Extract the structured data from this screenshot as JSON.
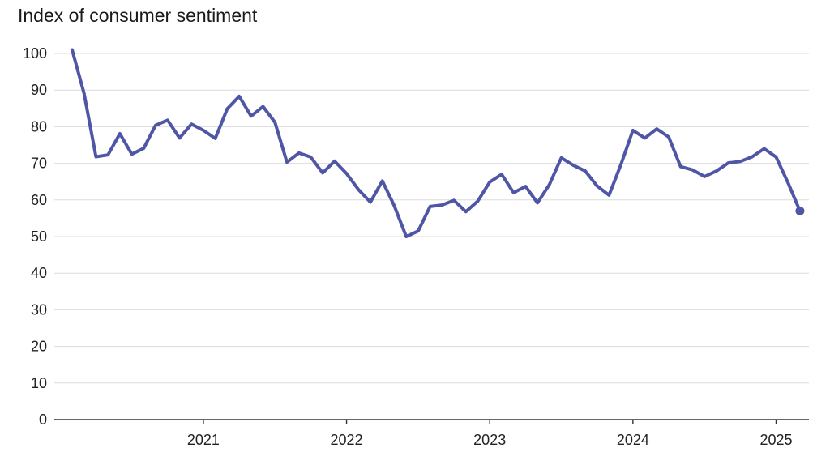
{
  "chart_data": {
    "type": "line",
    "title": "Index of consumer sentiment",
    "xlabel": "",
    "ylabel": "",
    "ylim": [
      0,
      100
    ],
    "yticks": [
      0,
      10,
      20,
      30,
      40,
      50,
      60,
      70,
      80,
      90,
      100
    ],
    "xticks": [
      "2021",
      "2022",
      "2023",
      "2024",
      "2025"
    ],
    "grid": true,
    "line_color": "#4f56a6",
    "series": [
      {
        "x": [
          "2020-02",
          "2020-03",
          "2020-04",
          "2020-05",
          "2020-06",
          "2020-07",
          "2020-08",
          "2020-09",
          "2020-10",
          "2020-11",
          "2020-12",
          "2021-01",
          "2021-02",
          "2021-03",
          "2021-04",
          "2021-05",
          "2021-06",
          "2021-07",
          "2021-08",
          "2021-09",
          "2021-10",
          "2021-11",
          "2021-12",
          "2022-01",
          "2022-02",
          "2022-03",
          "2022-04",
          "2022-05",
          "2022-06",
          "2022-07",
          "2022-08",
          "2022-09",
          "2022-10",
          "2022-11",
          "2022-12",
          "2023-01",
          "2023-02",
          "2023-03",
          "2023-04",
          "2023-05",
          "2023-06",
          "2023-07",
          "2023-08",
          "2023-09",
          "2023-10",
          "2023-11",
          "2023-12",
          "2024-01",
          "2024-02",
          "2024-03",
          "2024-04",
          "2024-05",
          "2024-06",
          "2024-07",
          "2024-08",
          "2024-09",
          "2024-10",
          "2024-11",
          "2024-12",
          "2025-01",
          "2025-02",
          "2025-03"
        ],
        "values": [
          101,
          89.1,
          71.8,
          72.3,
          78.1,
          72.5,
          74.1,
          80.4,
          81.8,
          76.9,
          80.7,
          79,
          76.8,
          84.9,
          88.3,
          82.9,
          85.5,
          81.2,
          70.3,
          72.8,
          71.7,
          67.4,
          70.6,
          67.2,
          62.8,
          59.4,
          65.2,
          58.4,
          50,
          51.5,
          58.2,
          58.6,
          59.9,
          56.8,
          59.7,
          64.9,
          67,
          62,
          63.7,
          59.2,
          64.2,
          71.5,
          69.5,
          67.9,
          63.8,
          61.3,
          69.7,
          79,
          76.9,
          79.4,
          77.2,
          69.1,
          68.2,
          66.4,
          67.9,
          70.1,
          70.5,
          71.8,
          74,
          71.7,
          64.7,
          57
        ]
      }
    ]
  }
}
